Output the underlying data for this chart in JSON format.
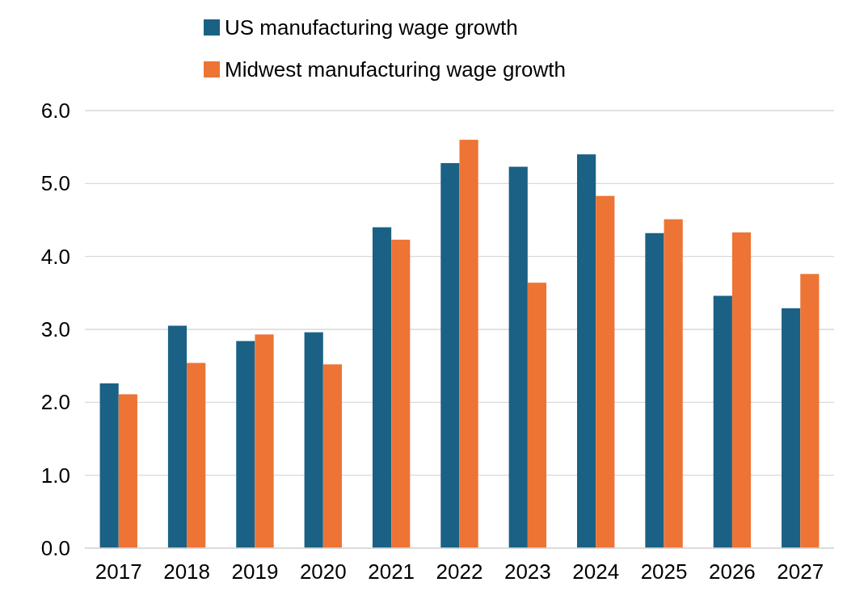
{
  "chart_data": {
    "type": "bar",
    "categories": [
      "2017",
      "2018",
      "2019",
      "2020",
      "2021",
      "2022",
      "2023",
      "2024",
      "2025",
      "2026",
      "2027"
    ],
    "series": [
      {
        "name": "US manufacturing wage growth",
        "color": "#1a6185",
        "values": [
          2.26,
          3.05,
          2.84,
          2.96,
          4.4,
          5.28,
          5.23,
          5.4,
          4.32,
          3.46,
          3.29
        ]
      },
      {
        "name": "Midwest manufacturing wage growth",
        "color": "#ed7435",
        "values": [
          2.11,
          2.54,
          2.93,
          2.52,
          4.23,
          5.6,
          3.64,
          4.83,
          4.51,
          4.33,
          3.76
        ]
      }
    ],
    "ylim": [
      0,
      6
    ],
    "yticks": [
      {
        "value": 0,
        "label": "0.0"
      },
      {
        "value": 1,
        "label": "1.0"
      },
      {
        "value": 2,
        "label": "2.0"
      },
      {
        "value": 3,
        "label": "3.0"
      },
      {
        "value": 4,
        "label": "4.0"
      },
      {
        "value": 5,
        "label": "5.0"
      },
      {
        "value": 6,
        "label": "6.0"
      }
    ],
    "grid": "y",
    "legend": "top"
  }
}
